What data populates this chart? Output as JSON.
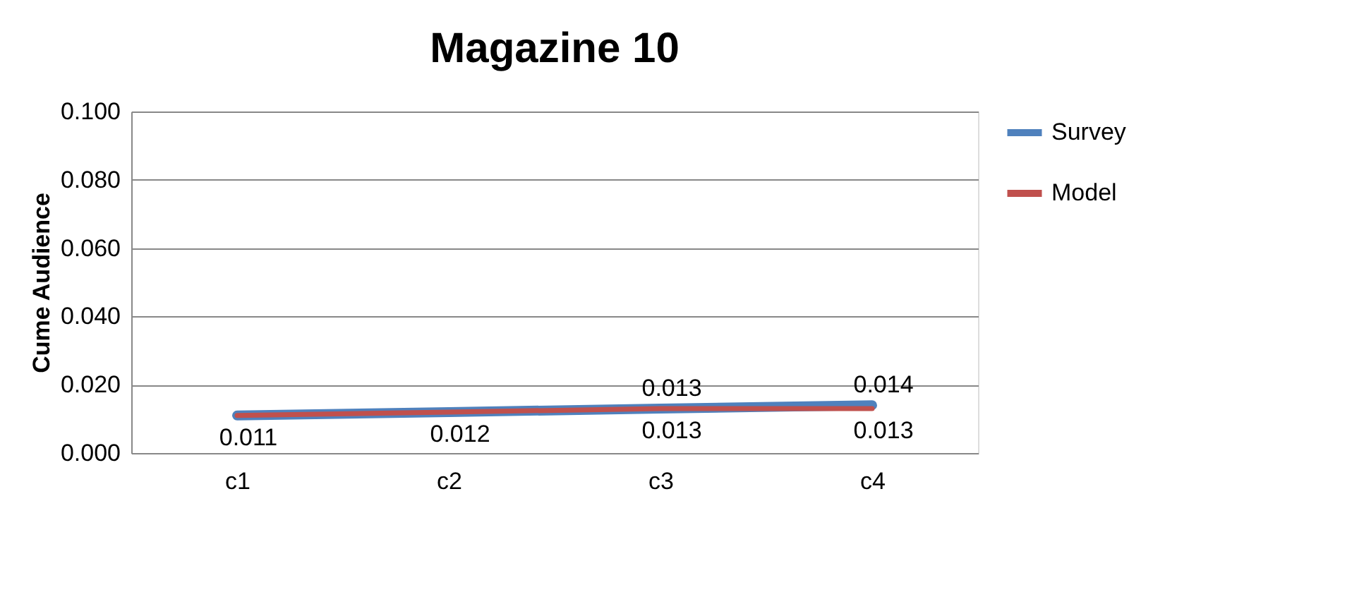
{
  "chart_data": {
    "type": "line",
    "title": "Magazine 10",
    "ylabel": "Cume Audience",
    "categories": [
      "c1",
      "c2",
      "c3",
      "c4"
    ],
    "series": [
      {
        "name": "Survey",
        "color": "#4f81bd",
        "values": [
          0.011,
          0.012,
          0.013,
          0.014
        ],
        "value_labels": [
          null,
          null,
          "0.013",
          "0.014"
        ]
      },
      {
        "name": "Model",
        "color": "#c0504d",
        "values": [
          0.011,
          0.012,
          0.013,
          0.013
        ],
        "value_labels": [
          "0.011",
          "0.012",
          "0.013",
          "0.013"
        ]
      }
    ],
    "ylim": [
      0,
      0.1
    ],
    "yticks": [
      {
        "value": 0,
        "label": "0.000"
      },
      {
        "value": 0.02,
        "label": "0.020"
      },
      {
        "value": 0.04,
        "label": "0.040"
      },
      {
        "value": 0.06,
        "label": "0.060"
      },
      {
        "value": 0.08,
        "label": "0.080"
      },
      {
        "value": 0.1,
        "label": "0.100"
      }
    ],
    "grid": "y",
    "legend": "right",
    "marker": "none",
    "line_style": "solid"
  }
}
